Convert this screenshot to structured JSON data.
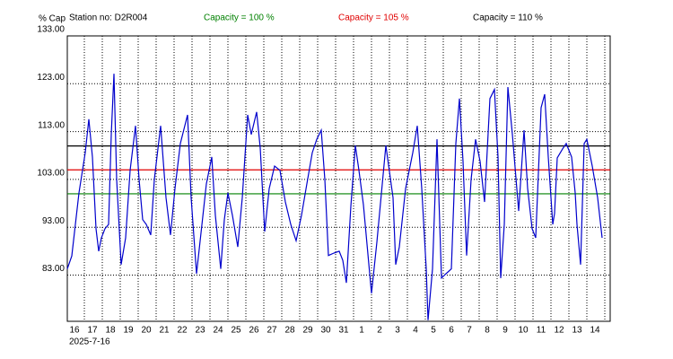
{
  "chart_data": {
    "type": "line",
    "y_label": "% Cap",
    "title": "Station no: D2R004",
    "date_label": "2025-7-16",
    "reference_lines": [
      {
        "name": "Capacity = 100 %",
        "value": 100,
        "color": "#008000"
      },
      {
        "name": "Capacity = 105 %",
        "value": 105,
        "color": "#e00000"
      },
      {
        "name": "Capacity = 110 %",
        "value": 110,
        "color": "#000000"
      }
    ],
    "xlim": [
      0,
      30.25
    ],
    "ylim": [
      73.35,
      133
    ],
    "grid": true,
    "xticks": [
      {
        "value": 0.3,
        "label": "16"
      },
      {
        "value": 1.3,
        "label": "17"
      },
      {
        "value": 2.3,
        "label": "18"
      },
      {
        "value": 3.3,
        "label": "19"
      },
      {
        "value": 4.3,
        "label": "20"
      },
      {
        "value": 5.3,
        "label": "21"
      },
      {
        "value": 6.3,
        "label": "22"
      },
      {
        "value": 7.3,
        "label": "23"
      },
      {
        "value": 8.3,
        "label": "24"
      },
      {
        "value": 9.3,
        "label": "25"
      },
      {
        "value": 10.3,
        "label": "26"
      },
      {
        "value": 11.3,
        "label": "27"
      },
      {
        "value": 12.3,
        "label": "28"
      },
      {
        "value": 13.3,
        "label": "29"
      },
      {
        "value": 14.3,
        "label": "30"
      },
      {
        "value": 15.3,
        "label": "31"
      },
      {
        "value": 16.3,
        "label": "1"
      },
      {
        "value": 17.3,
        "label": "2"
      },
      {
        "value": 18.3,
        "label": "3"
      },
      {
        "value": 19.3,
        "label": "4"
      },
      {
        "value": 20.3,
        "label": "5"
      },
      {
        "value": 21.3,
        "label": "6"
      },
      {
        "value": 22.3,
        "label": "7"
      },
      {
        "value": 23.3,
        "label": "8"
      },
      {
        "value": 24.3,
        "label": "9"
      },
      {
        "value": 25.3,
        "label": "10"
      },
      {
        "value": 26.3,
        "label": "11"
      },
      {
        "value": 27.3,
        "label": "12"
      },
      {
        "value": 28.3,
        "label": "13"
      },
      {
        "value": 29.3,
        "label": "14"
      }
    ],
    "yticks": [
      {
        "value": 133,
        "label": "133.00"
      },
      {
        "value": 123,
        "label": "123.00"
      },
      {
        "value": 113,
        "label": "113.00"
      },
      {
        "value": 103,
        "label": "103.00"
      },
      {
        "value": 93,
        "label": "93.00"
      },
      {
        "value": 83,
        "label": "83.00"
      }
    ],
    "series": [
      {
        "color": "#0000cc",
        "x": [
          0,
          0.25,
          0.65,
          1.0,
          1.2,
          1.4,
          1.6,
          1.75,
          1.9,
          2.1,
          2.3,
          2.45,
          2.6,
          2.75,
          3.0,
          3.25,
          3.5,
          3.8,
          4.0,
          4.2,
          4.4,
          4.65,
          4.85,
          5.2,
          5.5,
          5.75,
          6.0,
          6.3,
          6.7,
          6.9,
          7.2,
          7.45,
          7.75,
          8.05,
          8.25,
          8.55,
          8.75,
          8.95,
          9.2,
          9.5,
          9.75,
          10.05,
          10.25,
          10.55,
          10.75,
          11.0,
          11.25,
          11.55,
          11.85,
          12.15,
          12.45,
          12.75,
          13.05,
          13.35,
          13.65,
          13.9,
          14.15,
          14.35,
          14.55,
          14.85,
          15.15,
          15.35,
          15.55,
          15.8,
          16.05,
          16.25,
          16.5,
          16.85,
          16.95,
          17.25,
          17.75,
          18.15,
          18.3,
          18.5,
          18.85,
          19.25,
          19.5,
          19.75,
          20.0,
          20.1,
          20.35,
          20.6,
          20.85,
          21.1,
          21.4,
          21.65,
          21.85,
          22.05,
          22.25,
          22.5,
          22.75,
          23.0,
          23.25,
          23.55,
          23.8,
          24.0,
          24.15,
          24.35,
          24.55,
          24.8,
          25.15,
          25.45,
          25.65,
          25.9,
          26.1,
          26.4,
          26.6,
          26.8,
          27.05,
          27.15,
          27.3,
          27.6,
          27.8,
          28.1,
          28.3,
          28.4,
          28.6,
          28.8,
          28.95,
          29.25,
          29.55,
          29.8
        ],
        "values": [
          84.3,
          87.0,
          100.2,
          108.6,
          115.6,
          107.7,
          92.7,
          88.0,
          90.8,
          92.7,
          93.6,
          112.4,
          125.1,
          103.0,
          85.2,
          90.8,
          104.9,
          114.2,
          103.0,
          94.6,
          93.6,
          91.4,
          103.0,
          114.2,
          99.2,
          91.4,
          101.1,
          110.5,
          116.5,
          99.2,
          83.3,
          91.8,
          102.1,
          107.7,
          95.5,
          84.3,
          94.6,
          100.2,
          95.5,
          88.9,
          99.2,
          116.5,
          112.4,
          117.1,
          109.6,
          92.1,
          101.1,
          105.8,
          104.9,
          98.3,
          93.6,
          90.2,
          95.5,
          102.1,
          108.6,
          111.4,
          113.3,
          103.0,
          87.1,
          87.6,
          88.0,
          86.1,
          81.4,
          97.4,
          110.1,
          104.9,
          97.7,
          83.3,
          79.2,
          89.9,
          110.1,
          99.2,
          85.2,
          88.9,
          101.1,
          108.6,
          114.2,
          101.1,
          84.3,
          73.6,
          84.3,
          111.4,
          82.4,
          83.3,
          84.3,
          110.5,
          119.9,
          106.8,
          87.1,
          103.0,
          111.4,
          106.8,
          98.3,
          119.9,
          121.8,
          107.7,
          82.4,
          93.6,
          122.3,
          112.4,
          96.4,
          113.3,
          101.1,
          92.7,
          90.8,
          118.0,
          120.8,
          107.7,
          93.6,
          95.9,
          107.5,
          109.4,
          110.5,
          107.7,
          100.2,
          93.6,
          85.2,
          110.5,
          111.4,
          105.8,
          99.2,
          90.8
        ]
      }
    ]
  }
}
